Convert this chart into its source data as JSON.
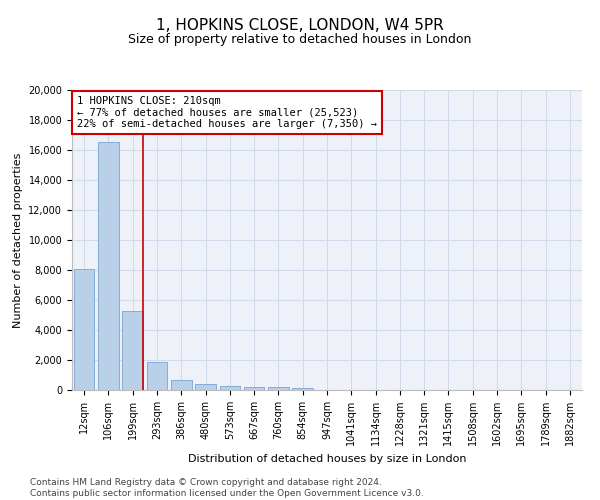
{
  "title1": "1, HOPKINS CLOSE, LONDON, W4 5PR",
  "title2": "Size of property relative to detached houses in London",
  "xlabel": "Distribution of detached houses by size in London",
  "ylabel": "Number of detached properties",
  "categories": [
    "12sqm",
    "106sqm",
    "199sqm",
    "293sqm",
    "386sqm",
    "480sqm",
    "573sqm",
    "667sqm",
    "760sqm",
    "854sqm",
    "947sqm",
    "1041sqm",
    "1134sqm",
    "1228sqm",
    "1321sqm",
    "1415sqm",
    "1508sqm",
    "1602sqm",
    "1695sqm",
    "1789sqm",
    "1882sqm"
  ],
  "values": [
    8100,
    16500,
    5300,
    1850,
    700,
    380,
    280,
    210,
    170,
    130,
    0,
    0,
    0,
    0,
    0,
    0,
    0,
    0,
    0,
    0,
    0
  ],
  "bar_color": "#b8d0e8",
  "bar_edge_color": "#6699cc",
  "grid_color": "#d0daea",
  "vline_color": "#cc0000",
  "annotation_box_edge": "#cc0000",
  "annotation_text_line1": "1 HOPKINS CLOSE: 210sqm",
  "annotation_text_line2": "← 77% of detached houses are smaller (25,523)",
  "annotation_text_line3": "22% of semi-detached houses are larger (7,350) →",
  "ylim": [
    0,
    20000
  ],
  "yticks": [
    0,
    2000,
    4000,
    6000,
    8000,
    10000,
    12000,
    14000,
    16000,
    18000,
    20000
  ],
  "footer_line1": "Contains HM Land Registry data © Crown copyright and database right 2024.",
  "footer_line2": "Contains public sector information licensed under the Open Government Licence v3.0.",
  "background_color": "#eef2f8",
  "title1_fontsize": 11,
  "title2_fontsize": 9,
  "axis_label_fontsize": 8,
  "tick_fontsize": 7,
  "annotation_fontsize": 7.5,
  "footer_fontsize": 6.5
}
